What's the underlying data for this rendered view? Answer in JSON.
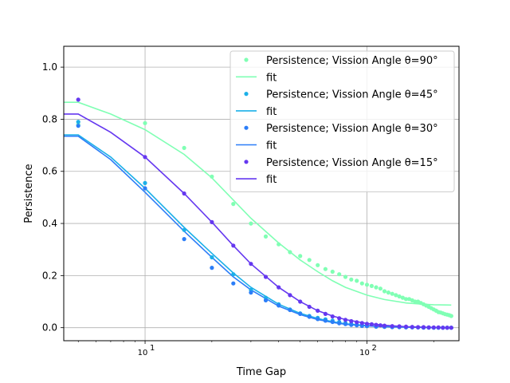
{
  "chart_data": {
    "type": "scatter",
    "xlabel": "Time Gap",
    "ylabel": "Persistence",
    "xscale": "log",
    "xlim": [
      4.3,
      260
    ],
    "ylim": [
      -0.05,
      1.08
    ],
    "grid": true,
    "legend_position": "top-right",
    "x_ticks": [
      {
        "value": 10,
        "base": "10",
        "exp": "1"
      },
      {
        "value": 100,
        "base": "10",
        "exp": "2"
      }
    ],
    "y_ticks": [
      "0.0",
      "0.2",
      "0.4",
      "0.6",
      "0.8",
      "1.0"
    ],
    "series": [
      {
        "name": "Persistence; Vission Angle θ=90°",
        "fit_name": "fit",
        "color": "#80ffb4",
        "x": [
          5,
          10,
          15,
          20,
          25,
          30,
          35,
          40,
          45,
          50,
          55,
          60,
          65,
          70,
          75,
          80,
          85,
          90,
          95,
          100,
          105,
          110,
          115,
          120,
          125,
          130,
          135,
          140,
          145,
          150,
          155,
          160,
          165,
          170,
          175,
          180,
          185,
          190,
          195,
          200,
          205,
          210,
          215,
          220,
          225,
          230,
          235,
          240
        ],
        "y": [
          0.78,
          0.785,
          0.69,
          0.58,
          0.475,
          0.4,
          0.35,
          0.32,
          0.29,
          0.275,
          0.26,
          0.24,
          0.225,
          0.215,
          0.205,
          0.195,
          0.185,
          0.18,
          0.17,
          0.165,
          0.16,
          0.155,
          0.15,
          0.14,
          0.135,
          0.13,
          0.125,
          0.12,
          0.115,
          0.11,
          0.11,
          0.105,
          0.1,
          0.1,
          0.095,
          0.09,
          0.085,
          0.08,
          0.075,
          0.07,
          0.065,
          0.06,
          0.058,
          0.055,
          0.052,
          0.05,
          0.048,
          0.045
        ],
        "fit_x": [
          4.3,
          5,
          7,
          10,
          15,
          20,
          25,
          30,
          40,
          50,
          60,
          70,
          80,
          100,
          120,
          150,
          180,
          200,
          240
        ],
        "fit_y": [
          0.865,
          0.865,
          0.82,
          0.76,
          0.665,
          0.575,
          0.49,
          0.42,
          0.325,
          0.26,
          0.215,
          0.18,
          0.155,
          0.125,
          0.108,
          0.095,
          0.09,
          0.088,
          0.087
        ]
      },
      {
        "name": "Persistence; Vission Angle θ=45°",
        "fit_name": "fit",
        "color": "#1cb0e8",
        "x": [
          5,
          10,
          15,
          20,
          25,
          30,
          35,
          40,
          45,
          50,
          55,
          60,
          65,
          70,
          75,
          80,
          85,
          90,
          95,
          100,
          110,
          120,
          130,
          140,
          150,
          160,
          170,
          180,
          190,
          200,
          210,
          220,
          230,
          240
        ],
        "y": [
          0.79,
          0.555,
          0.375,
          0.27,
          0.205,
          0.145,
          0.115,
          0.09,
          0.07,
          0.055,
          0.045,
          0.038,
          0.032,
          0.027,
          0.022,
          0.018,
          0.015,
          0.012,
          0.01,
          0.008,
          0.006,
          0.005,
          0.004,
          0.003,
          0.002,
          0.002,
          0.001,
          0.001,
          0.001,
          0.0,
          0.0,
          0.0,
          0.0,
          0.0
        ],
        "fit_x": [
          4.3,
          5,
          7,
          10,
          15,
          20,
          25,
          30,
          40,
          50,
          60,
          70,
          80,
          100,
          120,
          150,
          180,
          200,
          240
        ],
        "fit_y": [
          0.74,
          0.74,
          0.655,
          0.535,
          0.385,
          0.285,
          0.21,
          0.155,
          0.09,
          0.055,
          0.035,
          0.023,
          0.015,
          0.008,
          0.005,
          0.002,
          0.001,
          0.0005,
          0.0003
        ]
      },
      {
        "name": "Persistence; Vission Angle θ=30°",
        "fit_name": "fit",
        "color": "#2c7ef8",
        "x": [
          5,
          10,
          15,
          20,
          25,
          30,
          35,
          40,
          45,
          50,
          55,
          60,
          65,
          70,
          75,
          80,
          85,
          90,
          95,
          100,
          110,
          120,
          130,
          140,
          150,
          160,
          170,
          180,
          190,
          200,
          210,
          220,
          230,
          240
        ],
        "y": [
          0.775,
          0.535,
          0.34,
          0.23,
          0.17,
          0.135,
          0.105,
          0.085,
          0.068,
          0.053,
          0.042,
          0.033,
          0.027,
          0.022,
          0.017,
          0.014,
          0.011,
          0.009,
          0.007,
          0.006,
          0.004,
          0.003,
          0.002,
          0.002,
          0.001,
          0.001,
          0.001,
          0.0,
          0.0,
          0.0,
          0.0,
          0.0,
          0.0,
          0.0
        ],
        "fit_x": [
          4.3,
          5,
          7,
          10,
          15,
          20,
          25,
          30,
          40,
          50,
          60,
          70,
          80,
          100,
          120,
          150,
          180,
          200,
          240
        ],
        "fit_y": [
          0.735,
          0.735,
          0.645,
          0.52,
          0.37,
          0.27,
          0.195,
          0.145,
          0.083,
          0.05,
          0.031,
          0.02,
          0.013,
          0.007,
          0.004,
          0.002,
          0.001,
          0.0005,
          0.0003
        ]
      },
      {
        "name": "Persistence; Vission Angle θ=15°",
        "fit_name": "fit",
        "color": "#6538f0",
        "x": [
          5,
          10,
          15,
          20,
          25,
          30,
          35,
          40,
          45,
          50,
          55,
          60,
          65,
          70,
          75,
          80,
          85,
          90,
          95,
          100,
          105,
          110,
          115,
          120,
          130,
          140,
          150,
          160,
          170,
          180,
          190,
          200,
          210,
          220,
          230,
          240
        ],
        "y": [
          0.875,
          0.655,
          0.515,
          0.405,
          0.315,
          0.245,
          0.195,
          0.155,
          0.125,
          0.1,
          0.08,
          0.065,
          0.053,
          0.043,
          0.036,
          0.03,
          0.025,
          0.021,
          0.018,
          0.015,
          0.013,
          0.011,
          0.009,
          0.008,
          0.006,
          0.005,
          0.004,
          0.003,
          0.002,
          0.002,
          0.001,
          0.001,
          0.001,
          0.0,
          0.0,
          0.0
        ],
        "fit_x": [
          4.3,
          5,
          7,
          10,
          15,
          20,
          25,
          30,
          40,
          50,
          60,
          70,
          80,
          100,
          120,
          150,
          180,
          200,
          240
        ],
        "fit_y": [
          0.82,
          0.82,
          0.75,
          0.655,
          0.515,
          0.405,
          0.315,
          0.245,
          0.155,
          0.1,
          0.065,
          0.045,
          0.031,
          0.016,
          0.009,
          0.004,
          0.002,
          0.001,
          0.0005
        ]
      }
    ]
  }
}
